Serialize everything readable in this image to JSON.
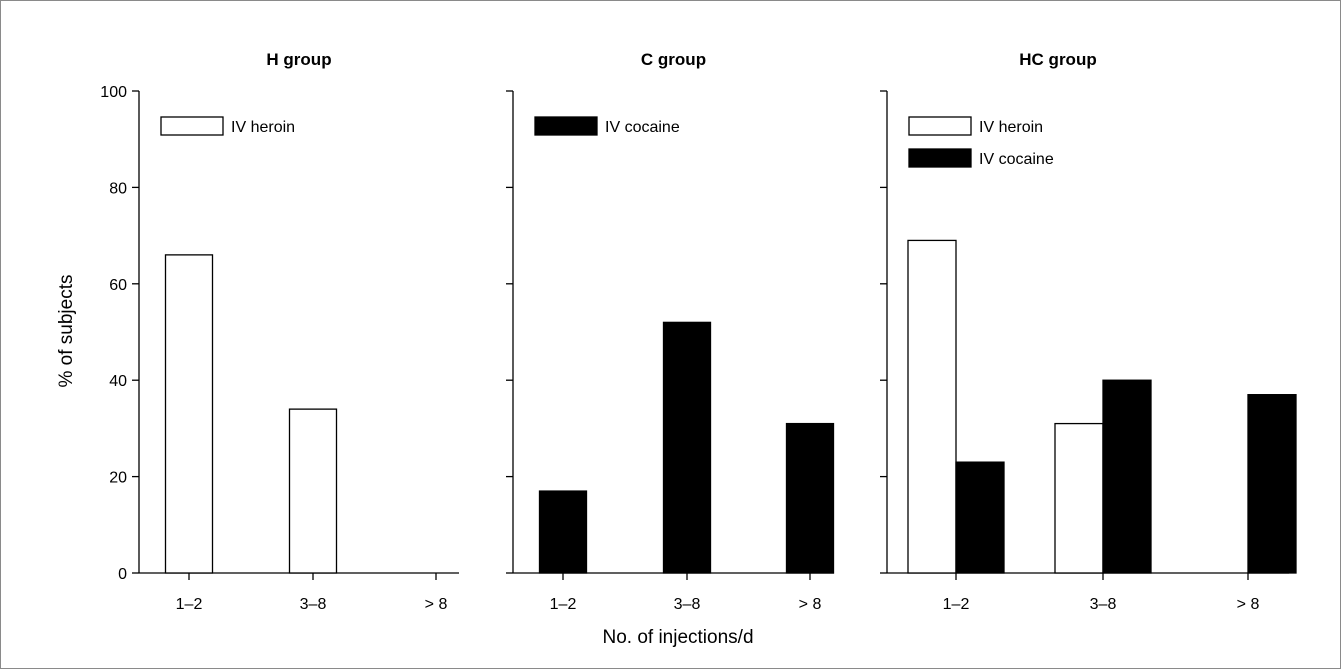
{
  "figure": {
    "ylabel": "% of subjects",
    "xlabel": "No. of injections/d",
    "yticks": [
      "0",
      "20",
      "40",
      "60",
      "80",
      "100"
    ],
    "legend_keys": {
      "heroin": "IV heroin",
      "cocaine": "IV cocaine"
    }
  },
  "colors": {
    "heroin_fill": "#ffffff",
    "cocaine_fill": "#000000",
    "stroke": "#000000"
  },
  "chart_data": [
    {
      "type": "bar",
      "title": "H group",
      "categories": [
        "1–2",
        "3–8",
        "> 8"
      ],
      "ylim": [
        0,
        100
      ],
      "grid": false,
      "legend_placement": "top-left",
      "series": [
        {
          "name": "IV heroin",
          "fill": "white",
          "values": [
            66,
            34,
            0
          ]
        }
      ]
    },
    {
      "type": "bar",
      "title": "C group",
      "categories": [
        "1–2",
        "3–8",
        "> 8"
      ],
      "ylim": [
        0,
        100
      ],
      "grid": false,
      "legend_placement": "top-left",
      "series": [
        {
          "name": "IV cocaine",
          "fill": "black",
          "values": [
            17,
            52,
            31
          ]
        }
      ]
    },
    {
      "type": "bar",
      "title": "HC group",
      "categories": [
        "1–2",
        "3–8",
        "> 8"
      ],
      "ylim": [
        0,
        100
      ],
      "grid": false,
      "legend_placement": "top-left",
      "series": [
        {
          "name": "IV heroin",
          "fill": "white",
          "values": [
            69,
            31,
            0
          ]
        },
        {
          "name": "IV cocaine",
          "fill": "black",
          "values": [
            23,
            40,
            37
          ]
        }
      ]
    }
  ]
}
